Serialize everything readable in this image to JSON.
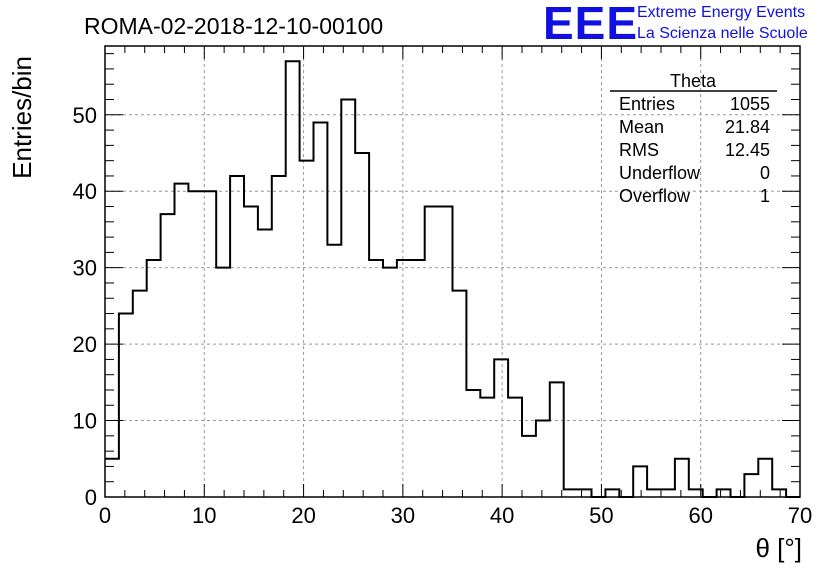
{
  "chart_data": {
    "type": "histogram",
    "title": "ROMA-02-2018-12-10-00100",
    "xlabel": "θ [°]",
    "ylabel": "Entries/bin",
    "xlim": [
      0,
      70
    ],
    "ylim": [
      0,
      59
    ],
    "xticks": [
      0,
      10,
      20,
      30,
      40,
      50,
      60,
      70
    ],
    "yticks": [
      0,
      10,
      20,
      30,
      40,
      50
    ],
    "grid": true,
    "bin_width": 1.4,
    "values": [
      5,
      24,
      27,
      31,
      37,
      41,
      40,
      40,
      30,
      42,
      38,
      35,
      42,
      57,
      44,
      49,
      33,
      52,
      45,
      31,
      30,
      31,
      31,
      38,
      38,
      27,
      14,
      13,
      18,
      13,
      8,
      10,
      15,
      1,
      1,
      0,
      1,
      0,
      4,
      1,
      1,
      5,
      1,
      0,
      1,
      0,
      3,
      5,
      1,
      0
    ],
    "stats": {
      "title": "Theta",
      "rows": [
        {
          "label": "Entries",
          "value": "1055"
        },
        {
          "label": "Mean",
          "value": "21.84"
        },
        {
          "label": "RMS",
          "value": "12.45"
        },
        {
          "label": "Underflow",
          "value": "0"
        },
        {
          "label": "Overflow",
          "value": "1"
        }
      ]
    }
  },
  "logo": {
    "mark": "EEE",
    "line1": "Extreme Energy Events",
    "line2": "La Scienza nelle Scuole",
    "color": "#1010e0"
  }
}
